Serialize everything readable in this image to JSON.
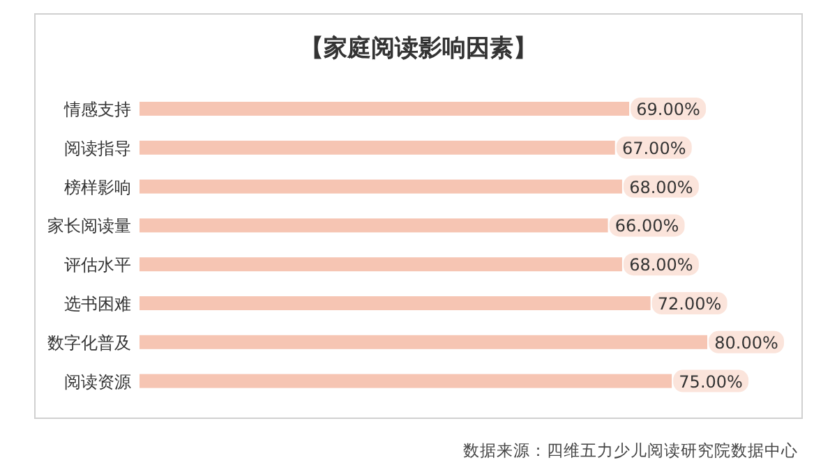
{
  "chart_data": {
    "type": "bar",
    "orientation": "horizontal",
    "title": "【家庭阅读影响因素】",
    "categories": [
      "情感支持",
      "阅读指导",
      "榜样影响",
      "家长阅读量",
      "评估水平",
      "选书困难",
      "数字化普及",
      "阅读资源"
    ],
    "values": [
      69,
      67,
      68,
      66,
      68,
      72,
      80,
      75
    ],
    "value_labels": [
      "69.00%",
      "67.00%",
      "68.00%",
      "66.00%",
      "68.00%",
      "72.00%",
      "80.00%",
      "75.00%"
    ],
    "color": "#f6c5b3",
    "annotations": [
      "数据来源：四维五力少儿阅读研究院数据中心"
    ]
  }
}
